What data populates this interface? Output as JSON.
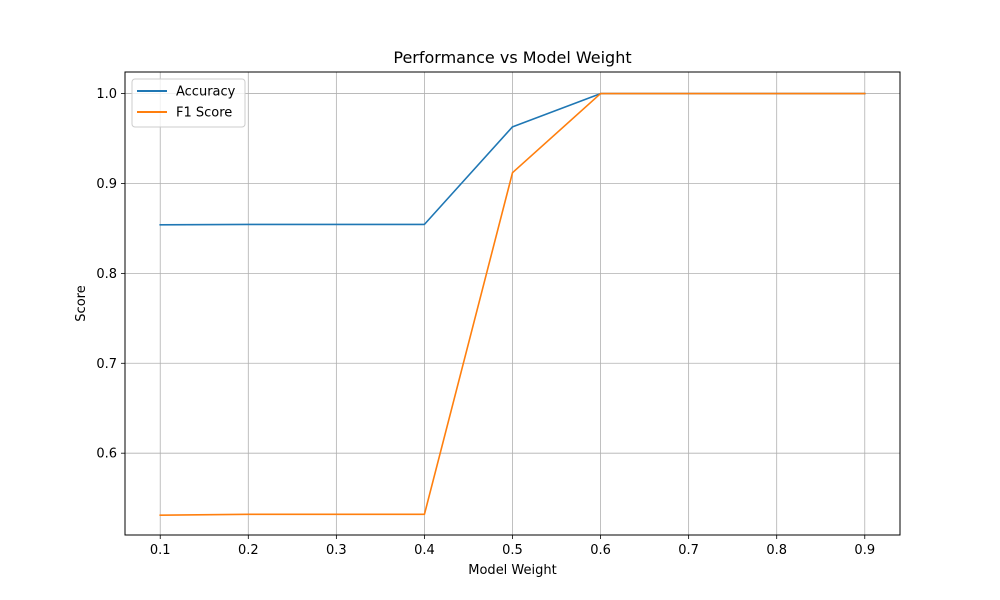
{
  "chart_data": {
    "type": "line",
    "title": "Performance vs Model Weight",
    "xlabel": "Model Weight",
    "ylabel": "Score",
    "x": [
      0.1,
      0.2,
      0.3,
      0.4,
      0.5,
      0.6,
      0.7,
      0.8,
      0.9
    ],
    "series": [
      {
        "name": "Accuracy",
        "color": "#1f77b4",
        "values": [
          0.854,
          0.8545,
          0.8545,
          0.8545,
          0.963,
          1.0,
          1.0,
          1.0,
          1.0
        ]
      },
      {
        "name": "F1 Score",
        "color": "#ff7f0e",
        "values": [
          0.531,
          0.532,
          0.532,
          0.532,
          0.912,
          1.0,
          1.0,
          1.0,
          1.0
        ]
      }
    ],
    "xlim": [
      0.06,
      0.94
    ],
    "ylim": [
      0.509,
      1.024
    ],
    "xticks": [
      "0.1",
      "0.2",
      "0.3",
      "0.4",
      "0.5",
      "0.6",
      "0.7",
      "0.8",
      "0.9"
    ],
    "yticks": [
      "0.6",
      "0.7",
      "0.8",
      "0.9",
      "1.0"
    ],
    "grid": true,
    "legend_position": "top-left"
  }
}
